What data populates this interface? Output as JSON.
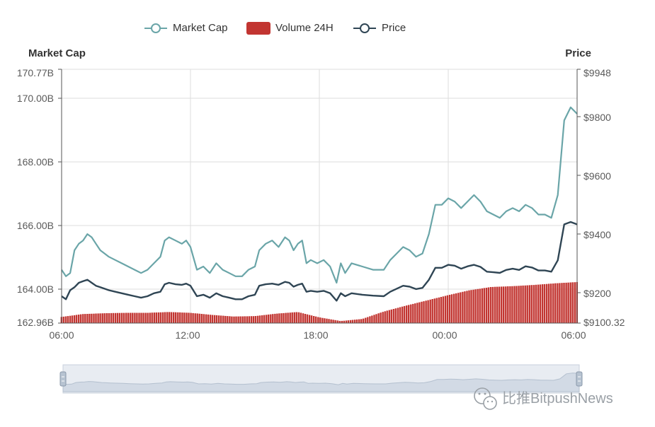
{
  "legend": {
    "market_cap": "Market Cap",
    "volume_24h": "Volume 24H",
    "price": "Price"
  },
  "axes": {
    "left_title": "Market Cap",
    "right_title": "Price",
    "left_ticks": [
      "170.77B",
      "170.00B",
      "168.00B",
      "166.00B",
      "164.00B",
      "162.96B"
    ],
    "right_ticks": [
      "$9948",
      "$9800",
      "$9600",
      "$9400",
      "$9200",
      "$9100.32"
    ],
    "x_ticks": [
      "06:00",
      "12:00",
      "18:00",
      "00:00",
      "06:00"
    ]
  },
  "watermark": "比推BitpushNews",
  "colors": {
    "market_cap": "#6aa5a8",
    "volume": "#c23531",
    "price": "#2f4554",
    "slider_fill": "#d6dde7",
    "grid": "#dddddd"
  },
  "chart_data": {
    "type": "line",
    "title": "",
    "x_range": [
      "06:00",
      "06:00 (+1 day)"
    ],
    "x_ticks": [
      "06:00",
      "12:00",
      "18:00",
      "00:00",
      "06:00"
    ],
    "y_left": {
      "label": "Market Cap",
      "unit": "B",
      "range": [
        162.96,
        170.77
      ]
    },
    "y_right": {
      "label": "Price",
      "unit": "$",
      "range": [
        9100.32,
        9948
      ]
    },
    "legend_position": "top-center",
    "grid": true,
    "series": [
      {
        "name": "Market Cap",
        "axis": "left",
        "hours": [
          0,
          0.2,
          0.4,
          0.6,
          0.8,
          1.0,
          1.2,
          1.4,
          1.6,
          1.8,
          2.0,
          2.2,
          2.5,
          2.8,
          3.1,
          3.4,
          3.7,
          4.0,
          4.3,
          4.6,
          4.8,
          5.0,
          5.3,
          5.6,
          5.8,
          6.0,
          6.3,
          6.6,
          6.9,
          7.2,
          7.5,
          7.8,
          8.1,
          8.4,
          8.7,
          9.0,
          9.2,
          9.5,
          9.8,
          10.1,
          10.4,
          10.6,
          10.8,
          11.0,
          11.2,
          11.4,
          11.6,
          11.9,
          12.2,
          12.5,
          12.8,
          13.0,
          13.2,
          13.5,
          14.0,
          14.5,
          15.0,
          15.3,
          15.6,
          15.9,
          16.2,
          16.5,
          16.8,
          17.1,
          17.4,
          17.7,
          18.0,
          18.3,
          18.6,
          18.9,
          19.2,
          19.5,
          19.8,
          20.1,
          20.4,
          20.7,
          21.0,
          21.3,
          21.6,
          21.9,
          22.2,
          22.5,
          22.8,
          23.1,
          23.4,
          23.7,
          24.0
        ],
        "values": [
          164.6,
          164.4,
          164.5,
          165.2,
          165.4,
          165.5,
          165.7,
          165.6,
          165.4,
          165.2,
          165.1,
          165.0,
          164.9,
          164.8,
          164.7,
          164.6,
          164.5,
          164.6,
          164.8,
          165.0,
          165.5,
          165.6,
          165.5,
          165.4,
          165.5,
          165.3,
          164.6,
          164.7,
          164.5,
          164.8,
          164.6,
          164.5,
          164.4,
          164.4,
          164.6,
          164.7,
          165.2,
          165.4,
          165.5,
          165.3,
          165.6,
          165.5,
          165.2,
          165.4,
          165.5,
          164.8,
          164.9,
          164.8,
          164.9,
          164.7,
          164.2,
          164.8,
          164.5,
          164.8,
          164.7,
          164.6,
          164.6,
          164.9,
          165.1,
          165.3,
          165.2,
          165.0,
          165.1,
          165.7,
          166.6,
          166.6,
          166.8,
          166.7,
          166.5,
          166.7,
          166.9,
          166.7,
          166.4,
          166.3,
          166.2,
          166.4,
          166.5,
          166.4,
          166.6,
          166.5,
          166.3,
          166.3,
          166.2,
          166.9,
          169.2,
          169.6,
          169.4
        ]
      },
      {
        "name": "Price",
        "axis": "right",
        "hours": [
          0,
          0.2,
          0.4,
          0.6,
          0.8,
          1.0,
          1.2,
          1.4,
          1.6,
          1.8,
          2.0,
          2.2,
          2.5,
          2.8,
          3.1,
          3.4,
          3.7,
          4.0,
          4.3,
          4.6,
          4.8,
          5.0,
          5.3,
          5.6,
          5.8,
          6.0,
          6.3,
          6.6,
          6.9,
          7.2,
          7.5,
          7.8,
          8.1,
          8.4,
          8.7,
          9.0,
          9.2,
          9.5,
          9.8,
          10.1,
          10.4,
          10.6,
          10.8,
          11.0,
          11.2,
          11.4,
          11.6,
          11.9,
          12.2,
          12.5,
          12.8,
          13.0,
          13.2,
          13.5,
          14.0,
          14.5,
          15.0,
          15.3,
          15.6,
          15.9,
          16.2,
          16.5,
          16.8,
          17.1,
          17.4,
          17.7,
          18.0,
          18.3,
          18.6,
          18.9,
          19.2,
          19.5,
          19.8,
          20.1,
          20.4,
          20.7,
          21.0,
          21.3,
          21.6,
          21.9,
          22.2,
          22.5,
          22.8,
          23.1,
          23.4,
          23.7,
          24.0
        ],
        "values": [
          9190,
          9180,
          9210,
          9220,
          9235,
          9240,
          9245,
          9235,
          9225,
          9220,
          9215,
          9210,
          9205,
          9200,
          9195,
          9190,
          9185,
          9190,
          9200,
          9205,
          9230,
          9235,
          9230,
          9228,
          9232,
          9225,
          9190,
          9195,
          9185,
          9200,
          9190,
          9185,
          9180,
          9180,
          9190,
          9195,
          9225,
          9230,
          9232,
          9228,
          9238,
          9235,
          9222,
          9228,
          9232,
          9205,
          9208,
          9205,
          9208,
          9200,
          9175,
          9200,
          9190,
          9200,
          9195,
          9192,
          9190,
          9205,
          9215,
          9225,
          9222,
          9214,
          9218,
          9245,
          9285,
          9285,
          9295,
          9292,
          9282,
          9290,
          9295,
          9288,
          9272,
          9270,
          9268,
          9278,
          9282,
          9278,
          9290,
          9286,
          9276,
          9276,
          9272,
          9310,
          9430,
          9438,
          9430
        ]
      },
      {
        "name": "Volume 24H",
        "axis": "hidden",
        "type": "bar",
        "hours": [
          0,
          1,
          2,
          3,
          4,
          5,
          6,
          7,
          8,
          9,
          10,
          11,
          12,
          13,
          14,
          15,
          16,
          17,
          18,
          19,
          20,
          21,
          22,
          23,
          24
        ],
        "values": [
          0.15,
          0.22,
          0.24,
          0.25,
          0.25,
          0.27,
          0.25,
          0.2,
          0.16,
          0.17,
          0.23,
          0.27,
          0.14,
          0.05,
          0.1,
          0.28,
          0.42,
          0.55,
          0.68,
          0.8,
          0.88,
          0.9,
          0.93,
          0.97,
          1.0
        ]
      }
    ]
  }
}
